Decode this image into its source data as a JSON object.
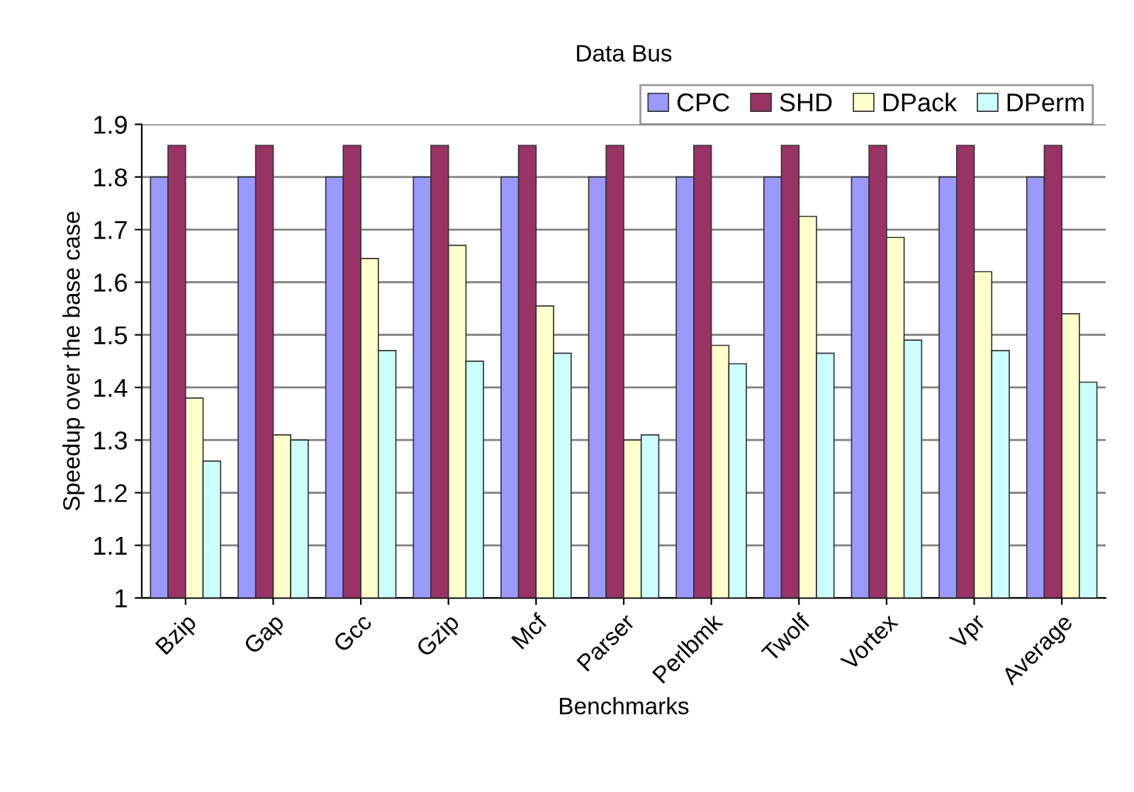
{
  "chart_data": {
    "type": "bar",
    "title": "Data Bus",
    "xlabel": "Benchmarks",
    "ylabel": "Speedup over the base case",
    "categories": [
      "Bzip",
      "Gap",
      "Gcc",
      "Gzip",
      "Mcf",
      "Parser",
      "Perlbmk",
      "Twolf",
      "Vortex",
      "Vpr",
      "Average"
    ],
    "series": [
      {
        "name": "CPC",
        "color": "#9999ff",
        "values": [
          1.8,
          1.8,
          1.8,
          1.8,
          1.8,
          1.8,
          1.8,
          1.8,
          1.8,
          1.8,
          1.8
        ]
      },
      {
        "name": "SHD",
        "color": "#993366",
        "values": [
          1.86,
          1.86,
          1.86,
          1.86,
          1.86,
          1.86,
          1.86,
          1.86,
          1.86,
          1.86,
          1.86
        ]
      },
      {
        "name": "DPack",
        "color": "#ffffcc",
        "values": [
          1.38,
          1.31,
          1.645,
          1.67,
          1.555,
          1.3,
          1.48,
          1.725,
          1.685,
          1.62,
          1.54
        ]
      },
      {
        "name": "DPerm",
        "color": "#ccffff",
        "values": [
          1.26,
          1.3,
          1.47,
          1.45,
          1.465,
          1.31,
          1.445,
          1.465,
          1.49,
          1.47,
          1.41
        ]
      }
    ],
    "ylim": [
      1,
      1.9
    ],
    "yticks": [
      1,
      1.1,
      1.2,
      1.3,
      1.4,
      1.5,
      1.6,
      1.7,
      1.8,
      1.9
    ],
    "grid": "y",
    "legend": "top right"
  }
}
